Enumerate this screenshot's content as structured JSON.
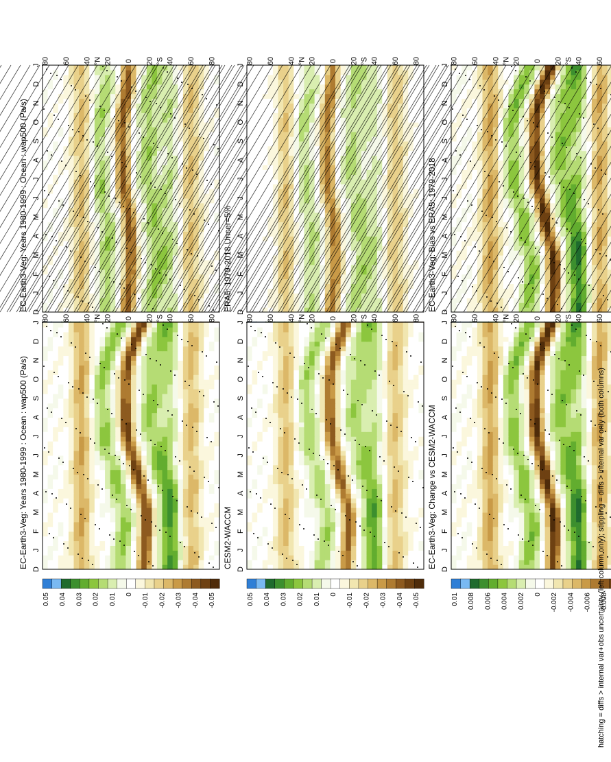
{
  "page": {
    "footnote": "hatching = diffs > internal var+obs uncertainty (left column only); stippling = diffs > internal var only (both columns)"
  },
  "colorbars": {
    "abs": {
      "labels": [
        "0.05",
        "0.04",
        "0.03",
        "0.02",
        "0.01",
        "0",
        "-0.01",
        "-0.02",
        "-0.03",
        "-0.04",
        "-0.05"
      ],
      "colors": [
        "#2f7fd6",
        "#79b9f2",
        "#1f6b2e",
        "#3c8f2e",
        "#62ad2f",
        "#8cc63e",
        "#b5dc74",
        "#d9eeb0",
        "#f5f9ea",
        "#ffffff",
        "#fbf7dd",
        "#f1e6b0",
        "#e9d18b",
        "#dcb868",
        "#c99a47",
        "#ae7b31",
        "#8d5a1f",
        "#6e4112",
        "#4f2c0a"
      ]
    },
    "diff": {
      "labels": [
        "0.01",
        "0.008",
        "0.006",
        "0.004",
        "0.002",
        "0",
        "-0.002",
        "-0.004",
        "-0.006",
        "-0.008",
        "-0.01"
      ],
      "colors": [
        "#2f7fd6",
        "#79b9f2",
        "#1f6b2e",
        "#3c8f2e",
        "#62ad2f",
        "#8cc63e",
        "#b5dc74",
        "#d9eeb0",
        "#f5f9ea",
        "#ffffff",
        "#fbf7dd",
        "#f1e6b0",
        "#e9d18b",
        "#dcb868",
        "#c99a47",
        "#ae7b31",
        "#8d5a1f",
        "#6e4112",
        "#4f2c0a"
      ]
    }
  },
  "chart_data": [
    {
      "type": "heatmap",
      "title": "EC-Earth3-Veg: Years 1980-1999 : Ocean : wap500 (Pa/s)",
      "x_ticks": [
        "D",
        "J",
        "F",
        "M",
        "A",
        "M",
        "J",
        "J",
        "A",
        "S",
        "O",
        "N",
        "D",
        "J"
      ],
      "y_ticks": [
        "80",
        "60",
        "40",
        "20",
        "0",
        "20",
        "40",
        "60",
        "80"
      ],
      "y_hemisphere_labels": [
        "°N",
        "°S"
      ],
      "colorbar": "abs",
      "itcz_lat": [
        6,
        5,
        3,
        2,
        3,
        5,
        8,
        10,
        11,
        11,
        10,
        8,
        6,
        5
      ],
      "itcz_amp": -0.04,
      "markings": "hatching+stippling"
    },
    {
      "type": "heatmap",
      "title": "EC-Earth3-Veg: Years 1980-1999 : Ocean : wap500 (Pa/s)",
      "x_ticks": [
        "D",
        "J",
        "F",
        "M",
        "A",
        "M",
        "J",
        "J",
        "A",
        "S",
        "O",
        "N",
        "D",
        "J"
      ],
      "y_ticks": [
        "80",
        "60",
        "40",
        "20",
        "0",
        "20",
        "40",
        "60",
        "80"
      ],
      "y_hemisphere_labels": [
        "°N",
        "°S"
      ],
      "colorbar": "abs",
      "itcz_lat": [
        -10,
        -12,
        -13,
        -12,
        -8,
        -3,
        2,
        6,
        8,
        8,
        7,
        4,
        -2,
        -10
      ],
      "itcz_amp": -0.045,
      "markings": "stippling"
    },
    {
      "type": "heatmap",
      "title": "ERA5: 1979-2018 Uncer=5%",
      "x_ticks": [
        "D",
        "J",
        "F",
        "M",
        "A",
        "M",
        "J",
        "J",
        "A",
        "S",
        "O",
        "N",
        "D",
        "J"
      ],
      "y_ticks": [
        "80",
        "60",
        "40",
        "20",
        "0",
        "20",
        "40",
        "60",
        "80"
      ],
      "y_hemisphere_labels": [
        "°N",
        "°S"
      ],
      "colorbar": "abs",
      "itcz_lat": [
        6,
        5,
        3,
        2,
        3,
        5,
        8,
        10,
        11,
        11,
        10,
        8,
        6,
        5
      ],
      "itcz_amp": -0.035,
      "markings": "hatching"
    },
    {
      "type": "heatmap",
      "title": "CESM2-WACCM",
      "x_ticks": [
        "D",
        "J",
        "F",
        "M",
        "A",
        "M",
        "J",
        "J",
        "A",
        "S",
        "O",
        "N",
        "D",
        "J"
      ],
      "y_ticks": [
        "80",
        "60",
        "40",
        "20",
        "0",
        "20",
        "40",
        "60",
        "80"
      ],
      "y_hemisphere_labels": [
        "°N",
        "°S"
      ],
      "colorbar": "abs",
      "itcz_lat": [
        -8,
        -10,
        -11,
        -10,
        -6,
        -1,
        3,
        6,
        8,
        8,
        7,
        4,
        -2,
        -8
      ],
      "itcz_amp": -0.04,
      "markings": "stippling"
    },
    {
      "type": "heatmap",
      "title": "EC-Earth3-Veg: Bias vs ERA5: 1979-2018",
      "x_ticks": [
        "D",
        "J",
        "F",
        "M",
        "A",
        "M",
        "J",
        "J",
        "A",
        "S",
        "O",
        "N",
        "D",
        "J"
      ],
      "y_ticks": [
        "80",
        "60",
        "40",
        "20",
        "0",
        "20",
        "40",
        "60",
        "80"
      ],
      "y_hemisphere_labels": [
        "°N",
        "°S"
      ],
      "colorbar": "diff",
      "itcz_lat": [
        -10,
        -12,
        -12,
        -10,
        -6,
        -2,
        2,
        5,
        7,
        7,
        6,
        3,
        -3,
        -10
      ],
      "itcz_amp": -0.01,
      "markings": "hatching+stippling"
    },
    {
      "type": "heatmap",
      "title": "EC-Earth3-Veg: Change vs CESM2-WACCM",
      "x_ticks": [
        "D",
        "J",
        "F",
        "M",
        "A",
        "M",
        "J",
        "J",
        "A",
        "S",
        "O",
        "N",
        "D",
        "J"
      ],
      "y_ticks": [
        "80",
        "60",
        "40",
        "20",
        "0",
        "20",
        "40",
        "60",
        "80"
      ],
      "y_hemisphere_labels": [
        "°N",
        "°S"
      ],
      "colorbar": "diff",
      "itcz_lat": [
        -10,
        -12,
        -12,
        -10,
        -6,
        -2,
        2,
        5,
        7,
        7,
        6,
        3,
        -3,
        -10
      ],
      "itcz_amp": -0.01,
      "markings": "stippling"
    }
  ]
}
